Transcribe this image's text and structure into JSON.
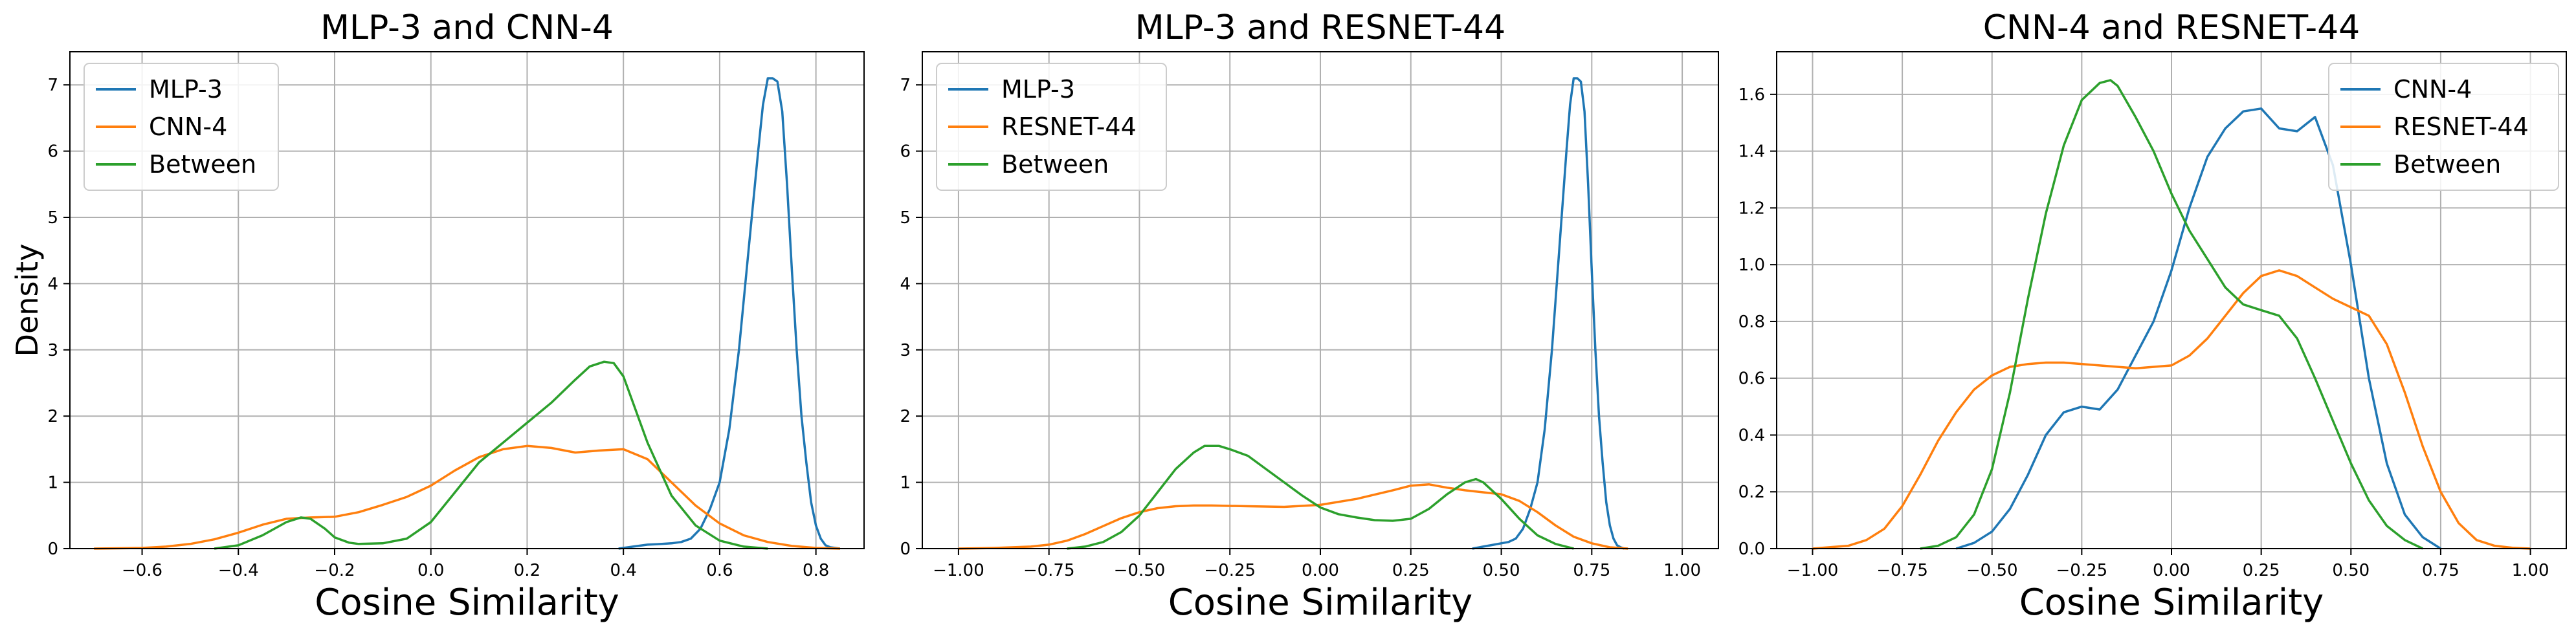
{
  "chart_data": [
    {
      "type": "line",
      "title": "MLP-3 and CNN-4",
      "xlabel": "Cosine Similarity",
      "ylabel": "Density",
      "xlim": [
        -0.75,
        0.9
      ],
      "ylim": [
        0,
        7.5
      ],
      "xticks": [
        -0.6,
        -0.4,
        -0.2,
        0.0,
        0.2,
        0.4,
        0.6,
        0.8
      ],
      "yticks": [
        0,
        1,
        2,
        3,
        4,
        5,
        6,
        7
      ],
      "xtick_labels": [
        "−0.6",
        "−0.4",
        "−0.2",
        "0.0",
        "0.2",
        "0.4",
        "0.6",
        "0.8"
      ],
      "ytick_labels": [
        "0",
        "1",
        "2",
        "3",
        "4",
        "5",
        "6",
        "7"
      ],
      "grid": true,
      "legend_position": "top-left",
      "series": [
        {
          "name": "MLP-3",
          "color": "#1f77b4",
          "x": [
            0.39,
            0.42,
            0.45,
            0.48,
            0.5,
            0.52,
            0.54,
            0.56,
            0.58,
            0.6,
            0.62,
            0.64,
            0.66,
            0.68,
            0.69,
            0.7,
            0.71,
            0.72,
            0.73,
            0.74,
            0.75,
            0.76,
            0.77,
            0.78,
            0.79,
            0.8,
            0.81,
            0.82,
            0.83,
            0.84,
            0.85
          ],
          "y": [
            0,
            0.03,
            0.06,
            0.07,
            0.08,
            0.1,
            0.15,
            0.3,
            0.6,
            1.0,
            1.8,
            3.0,
            4.5,
            6.0,
            6.7,
            7.1,
            7.1,
            7.05,
            6.6,
            5.5,
            4.2,
            3.0,
            2.0,
            1.3,
            0.7,
            0.35,
            0.15,
            0.05,
            0.02,
            0.01,
            0
          ]
        },
        {
          "name": "CNN-4",
          "color": "#ff7f0e",
          "x": [
            -0.7,
            -0.6,
            -0.55,
            -0.5,
            -0.45,
            -0.4,
            -0.35,
            -0.3,
            -0.25,
            -0.2,
            -0.15,
            -0.1,
            -0.05,
            0.0,
            0.05,
            0.1,
            0.15,
            0.2,
            0.25,
            0.3,
            0.35,
            0.4,
            0.45,
            0.5,
            0.55,
            0.6,
            0.65,
            0.7,
            0.75,
            0.8,
            0.85
          ],
          "y": [
            0,
            0.01,
            0.03,
            0.07,
            0.14,
            0.24,
            0.36,
            0.45,
            0.47,
            0.48,
            0.55,
            0.66,
            0.78,
            0.95,
            1.18,
            1.38,
            1.5,
            1.55,
            1.52,
            1.45,
            1.48,
            1.5,
            1.35,
            1.0,
            0.65,
            0.38,
            0.2,
            0.1,
            0.04,
            0.01,
            0
          ]
        },
        {
          "name": "Between",
          "color": "#2ca02c",
          "x": [
            -0.45,
            -0.4,
            -0.35,
            -0.3,
            -0.27,
            -0.25,
            -0.22,
            -0.2,
            -0.17,
            -0.15,
            -0.1,
            -0.05,
            0.0,
            0.05,
            0.1,
            0.15,
            0.2,
            0.25,
            0.3,
            0.33,
            0.36,
            0.38,
            0.4,
            0.42,
            0.45,
            0.5,
            0.55,
            0.6,
            0.65,
            0.7
          ],
          "y": [
            0,
            0.05,
            0.2,
            0.4,
            0.47,
            0.45,
            0.3,
            0.17,
            0.09,
            0.07,
            0.08,
            0.15,
            0.4,
            0.85,
            1.3,
            1.6,
            1.9,
            2.2,
            2.55,
            2.75,
            2.82,
            2.8,
            2.6,
            2.2,
            1.6,
            0.8,
            0.35,
            0.12,
            0.03,
            0
          ]
        }
      ]
    },
    {
      "type": "line",
      "title": "MLP-3 and RESNET-44",
      "xlabel": "Cosine Similarity",
      "ylabel": "",
      "xlim": [
        -1.1,
        1.1
      ],
      "ylim": [
        0,
        7.5
      ],
      "xticks": [
        -1.0,
        -0.75,
        -0.5,
        -0.25,
        0.0,
        0.25,
        0.5,
        0.75,
        1.0
      ],
      "yticks": [
        0,
        1,
        2,
        3,
        4,
        5,
        6,
        7
      ],
      "xtick_labels": [
        "−1.00",
        "−0.75",
        "−0.50",
        "−0.25",
        "0.00",
        "0.25",
        "0.50",
        "0.75",
        "1.00"
      ],
      "ytick_labels": [
        "0",
        "1",
        "2",
        "3",
        "4",
        "5",
        "6",
        "7"
      ],
      "grid": true,
      "legend_position": "top-left",
      "series": [
        {
          "name": "MLP-3",
          "color": "#1f77b4",
          "x": [
            0.42,
            0.45,
            0.48,
            0.5,
            0.52,
            0.54,
            0.56,
            0.58,
            0.6,
            0.62,
            0.64,
            0.66,
            0.68,
            0.69,
            0.7,
            0.71,
            0.72,
            0.73,
            0.74,
            0.75,
            0.76,
            0.77,
            0.78,
            0.79,
            0.8,
            0.81,
            0.82,
            0.83,
            0.84
          ],
          "y": [
            0,
            0.03,
            0.06,
            0.08,
            0.1,
            0.15,
            0.3,
            0.6,
            1.0,
            1.8,
            3.0,
            4.5,
            6.0,
            6.7,
            7.1,
            7.1,
            7.05,
            6.6,
            5.5,
            4.2,
            3.0,
            2.0,
            1.3,
            0.7,
            0.35,
            0.15,
            0.05,
            0.02,
            0
          ]
        },
        {
          "name": "RESNET-44",
          "color": "#ff7f0e",
          "x": [
            -1.0,
            -0.9,
            -0.8,
            -0.75,
            -0.7,
            -0.65,
            -0.6,
            -0.55,
            -0.5,
            -0.45,
            -0.4,
            -0.35,
            -0.3,
            -0.2,
            -0.1,
            0.0,
            0.1,
            0.2,
            0.25,
            0.3,
            0.35,
            0.4,
            0.45,
            0.5,
            0.55,
            0.6,
            0.65,
            0.7,
            0.75,
            0.8,
            0.85
          ],
          "y": [
            0,
            0.01,
            0.03,
            0.06,
            0.12,
            0.22,
            0.34,
            0.46,
            0.55,
            0.61,
            0.64,
            0.65,
            0.65,
            0.64,
            0.63,
            0.66,
            0.75,
            0.88,
            0.95,
            0.97,
            0.92,
            0.88,
            0.85,
            0.82,
            0.72,
            0.55,
            0.35,
            0.18,
            0.08,
            0.02,
            0
          ]
        },
        {
          "name": "Between",
          "color": "#2ca02c",
          "x": [
            -0.7,
            -0.65,
            -0.6,
            -0.55,
            -0.5,
            -0.45,
            -0.4,
            -0.35,
            -0.32,
            -0.28,
            -0.25,
            -0.2,
            -0.15,
            -0.1,
            -0.05,
            0.0,
            0.05,
            0.1,
            0.15,
            0.2,
            0.25,
            0.3,
            0.35,
            0.4,
            0.43,
            0.45,
            0.5,
            0.55,
            0.6,
            0.65,
            0.7
          ],
          "y": [
            0,
            0.03,
            0.1,
            0.25,
            0.5,
            0.85,
            1.2,
            1.45,
            1.55,
            1.55,
            1.5,
            1.4,
            1.2,
            1.0,
            0.8,
            0.62,
            0.52,
            0.47,
            0.43,
            0.42,
            0.45,
            0.6,
            0.82,
            1.0,
            1.05,
            1.0,
            0.75,
            0.45,
            0.2,
            0.07,
            0
          ]
        }
      ]
    },
    {
      "type": "line",
      "title": "CNN-4 and RESNET-44",
      "xlabel": "Cosine Similarity",
      "ylabel": "",
      "xlim": [
        -1.1,
        1.1
      ],
      "ylim": [
        0,
        1.75
      ],
      "xticks": [
        -1.0,
        -0.75,
        -0.5,
        -0.25,
        0.0,
        0.25,
        0.5,
        0.75,
        1.0
      ],
      "yticks": [
        0,
        0.2,
        0.4,
        0.6,
        0.8,
        1.0,
        1.2,
        1.4,
        1.6
      ],
      "xtick_labels": [
        "−1.00",
        "−0.75",
        "−0.50",
        "−0.25",
        "0.00",
        "0.25",
        "0.50",
        "0.75",
        "1.00"
      ],
      "ytick_labels": [
        "0.0",
        "0.2",
        "0.4",
        "0.6",
        "0.8",
        "1.0",
        "1.2",
        "1.4",
        "1.6"
      ],
      "grid": true,
      "legend_position": "top-right",
      "series": [
        {
          "name": "CNN-4",
          "color": "#1f77b4",
          "x": [
            -0.6,
            -0.55,
            -0.5,
            -0.45,
            -0.4,
            -0.35,
            -0.3,
            -0.25,
            -0.2,
            -0.15,
            -0.1,
            -0.05,
            0.0,
            0.05,
            0.1,
            0.15,
            0.2,
            0.25,
            0.3,
            0.35,
            0.4,
            0.45,
            0.5,
            0.55,
            0.6,
            0.65,
            0.7,
            0.75
          ],
          "y": [
            0,
            0.02,
            0.06,
            0.14,
            0.26,
            0.4,
            0.48,
            0.5,
            0.49,
            0.56,
            0.68,
            0.8,
            0.98,
            1.2,
            1.38,
            1.48,
            1.54,
            1.55,
            1.48,
            1.47,
            1.52,
            1.35,
            1.0,
            0.6,
            0.3,
            0.12,
            0.04,
            0
          ]
        },
        {
          "name": "RESNET-44",
          "color": "#ff7f0e",
          "x": [
            -1.0,
            -0.95,
            -0.9,
            -0.85,
            -0.8,
            -0.75,
            -0.7,
            -0.65,
            -0.6,
            -0.55,
            -0.5,
            -0.45,
            -0.4,
            -0.35,
            -0.3,
            -0.2,
            -0.1,
            0.0,
            0.05,
            0.1,
            0.15,
            0.2,
            0.25,
            0.3,
            0.35,
            0.4,
            0.45,
            0.5,
            0.55,
            0.6,
            0.65,
            0.7,
            0.75,
            0.8,
            0.85,
            0.9,
            0.95,
            1.0
          ],
          "y": [
            0,
            0.005,
            0.01,
            0.03,
            0.07,
            0.15,
            0.26,
            0.38,
            0.48,
            0.56,
            0.61,
            0.64,
            0.65,
            0.655,
            0.655,
            0.645,
            0.635,
            0.645,
            0.68,
            0.74,
            0.82,
            0.9,
            0.96,
            0.98,
            0.96,
            0.92,
            0.88,
            0.85,
            0.82,
            0.72,
            0.55,
            0.36,
            0.2,
            0.09,
            0.03,
            0.01,
            0.003,
            0
          ]
        },
        {
          "name": "Between",
          "color": "#2ca02c",
          "x": [
            -0.7,
            -0.65,
            -0.6,
            -0.55,
            -0.5,
            -0.45,
            -0.4,
            -0.35,
            -0.3,
            -0.25,
            -0.2,
            -0.17,
            -0.15,
            -0.1,
            -0.05,
            0.0,
            0.05,
            0.1,
            0.15,
            0.2,
            0.25,
            0.3,
            0.35,
            0.4,
            0.45,
            0.5,
            0.55,
            0.6,
            0.65,
            0.7
          ],
          "y": [
            0,
            0.01,
            0.04,
            0.12,
            0.28,
            0.55,
            0.88,
            1.18,
            1.42,
            1.58,
            1.64,
            1.65,
            1.63,
            1.52,
            1.4,
            1.25,
            1.12,
            1.02,
            0.92,
            0.86,
            0.84,
            0.82,
            0.74,
            0.6,
            0.45,
            0.3,
            0.17,
            0.08,
            0.03,
            0
          ]
        }
      ]
    }
  ]
}
